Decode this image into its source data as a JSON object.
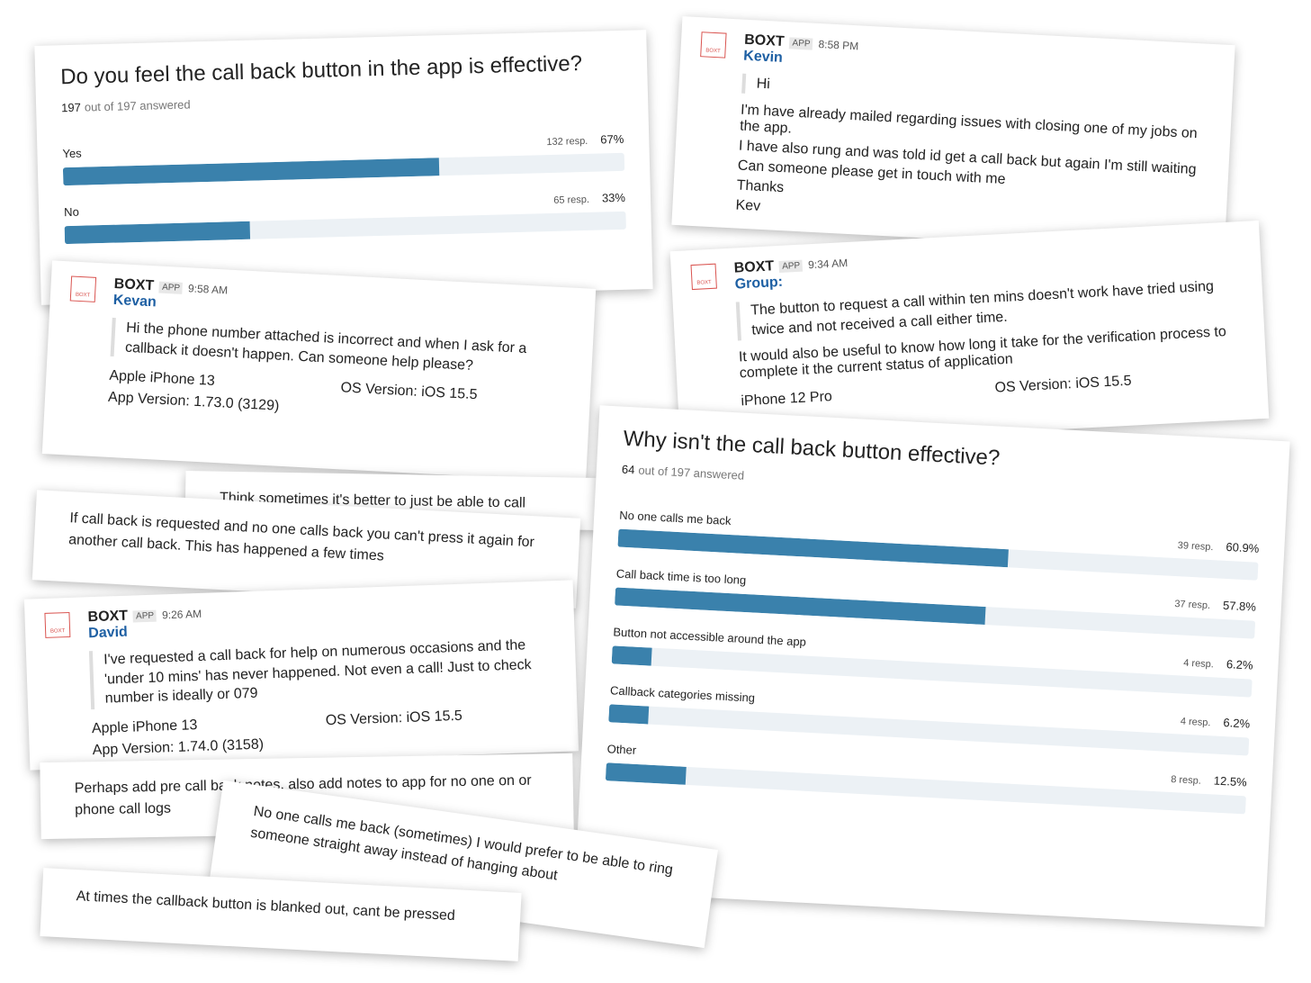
{
  "poll_1": {
    "question": "Do you feel the call back button in the app is effective?",
    "answered": "197",
    "answered_text": "out of 197 answered",
    "options": [
      {
        "label": "Yes",
        "responses": "132 resp.",
        "percent": 67,
        "percent_label": "67%"
      },
      {
        "label": "No",
        "responses": "65 resp.",
        "percent": 33,
        "percent_label": "33%"
      }
    ]
  },
  "poll_2": {
    "question": "Why isn't the call back button effective?",
    "answered": "64",
    "answered_text": "out of 197 answered",
    "options": [
      {
        "label": "No one calls me back",
        "responses": "39 resp.",
        "percent": 60.9,
        "percent_label": "60.9%"
      },
      {
        "label": "Call back time is too long",
        "responses": "37 resp.",
        "percent": 57.8,
        "percent_label": "57.8%"
      },
      {
        "label": "Button not accessible around the app",
        "responses": "4 resp.",
        "percent": 6.2,
        "percent_label": "6.2%"
      },
      {
        "label": "Callback categories missing",
        "responses": "4 resp.",
        "percent": 6.2,
        "percent_label": "6.2%"
      },
      {
        "label": "Other",
        "responses": "8 resp.",
        "percent": 12.5,
        "percent_label": "12.5%"
      }
    ]
  },
  "messages": [
    {
      "logo": "BOXT",
      "app": "BOXT",
      "badge": "APP",
      "time": "8:58 PM",
      "sender": "Kevin",
      "quote": "Hi",
      "body": [
        "I'm have already mailed regarding issues with closing one of my jobs on the app.",
        "I have also rung and was told id get a call back but again I'm still waiting",
        "Can someone please get in touch with me",
        "Thanks",
        "Kev"
      ]
    },
    {
      "logo": "BOXT",
      "app": "BOXT",
      "badge": "APP",
      "time": "9:58 AM",
      "sender": "Kevan",
      "quote": "Hi the phone number attached is incorrect and when I ask for a callback it doesn't happen. Can someone help please?",
      "device": "Apple iPhone 13",
      "app_version": "App Version: 1.73.0 (3129)",
      "os": "OS Version: iOS 15.5"
    },
    {
      "logo": "BOXT",
      "app": "BOXT",
      "badge": "APP",
      "time": "9:34 AM",
      "sender": "Group:",
      "quote": "The button to request a call within ten mins doesn't work have tried using twice and not received a call either time.",
      "body": [
        "It would also be useful to know how long it take for the verification process to complete it the current status of application"
      ],
      "device": "iPhone 12 Pro",
      "os": "OS Version: iOS 15.5"
    },
    {
      "logo": "BOXT",
      "app": "BOXT",
      "badge": "APP",
      "time": "9:26 AM",
      "sender": "David",
      "quote": "I've requested a call back for help on numerous occasions and the 'under 10 mins' has never happened. Not even a call! Just to check number is ideally or 079",
      "device": "Apple iPhone 13",
      "app_version": "App Version: 1.74.0 (3158)",
      "os": "OS Version: iOS 15.5"
    }
  ],
  "comments": [
    "Think sometimes it's better to just be able to call someone",
    "If call back is requested and no one calls back you can't press it again for another call back. This has happened a few times",
    "Perhaps add pre call back notes, also add notes to app for no one on or phone call logs",
    "No one calls me back (sometimes) I would prefer to be able to ring someone straight away instead of hanging about",
    "At times the callback button is blanked out, cant be pressed"
  ]
}
